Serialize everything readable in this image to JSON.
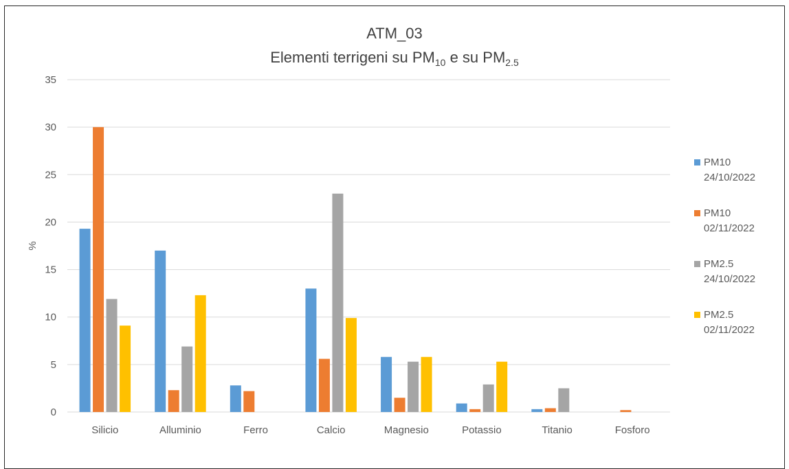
{
  "title": {
    "line1": "ATM_03",
    "line2_prefix": "Elementi terrigeni su PM",
    "line2_sub1": "10",
    "line2_mid": " e su PM",
    "line2_sub2": "2.5"
  },
  "chart_data": {
    "type": "bar",
    "title": "ATM_03 Elementi terrigeni su PM10 e su PM2.5",
    "xlabel": "",
    "ylabel": "%",
    "ylim": [
      0,
      35
    ],
    "yticks": [
      0,
      5,
      10,
      15,
      20,
      25,
      30,
      35
    ],
    "grid": true,
    "legend_position": "right",
    "categories": [
      "Silicio",
      "Alluminio",
      "Ferro",
      "Calcio",
      "Magnesio",
      "Potassio",
      "Titanio",
      "Fosforo"
    ],
    "series": [
      {
        "name": "PM10 24/10/2022",
        "name_line1": "PM10",
        "name_line2": "24/10/2022",
        "color": "#5B9BD5",
        "values": [
          19.3,
          17.0,
          2.8,
          13.0,
          5.8,
          0.9,
          0.3,
          null
        ]
      },
      {
        "name": "PM10 02/11/2022",
        "name_line1": "PM10",
        "name_line2": "02/11/2022",
        "color": "#ED7D31",
        "values": [
          30.0,
          2.3,
          2.2,
          5.6,
          1.5,
          0.3,
          0.4,
          0.2
        ]
      },
      {
        "name": "PM2.5 24/10/2022",
        "name_line1": "PM2.5",
        "name_line2": "24/10/2022",
        "color": "#A5A5A5",
        "values": [
          11.9,
          6.9,
          null,
          23.0,
          5.3,
          2.9,
          2.5,
          null
        ]
      },
      {
        "name": "PM2.5 02/11/2022",
        "name_line1": "PM2.5",
        "name_line2": "02/11/2022",
        "color": "#FFC000",
        "values": [
          9.1,
          12.3,
          null,
          9.9,
          5.8,
          5.3,
          null,
          null
        ]
      }
    ]
  }
}
